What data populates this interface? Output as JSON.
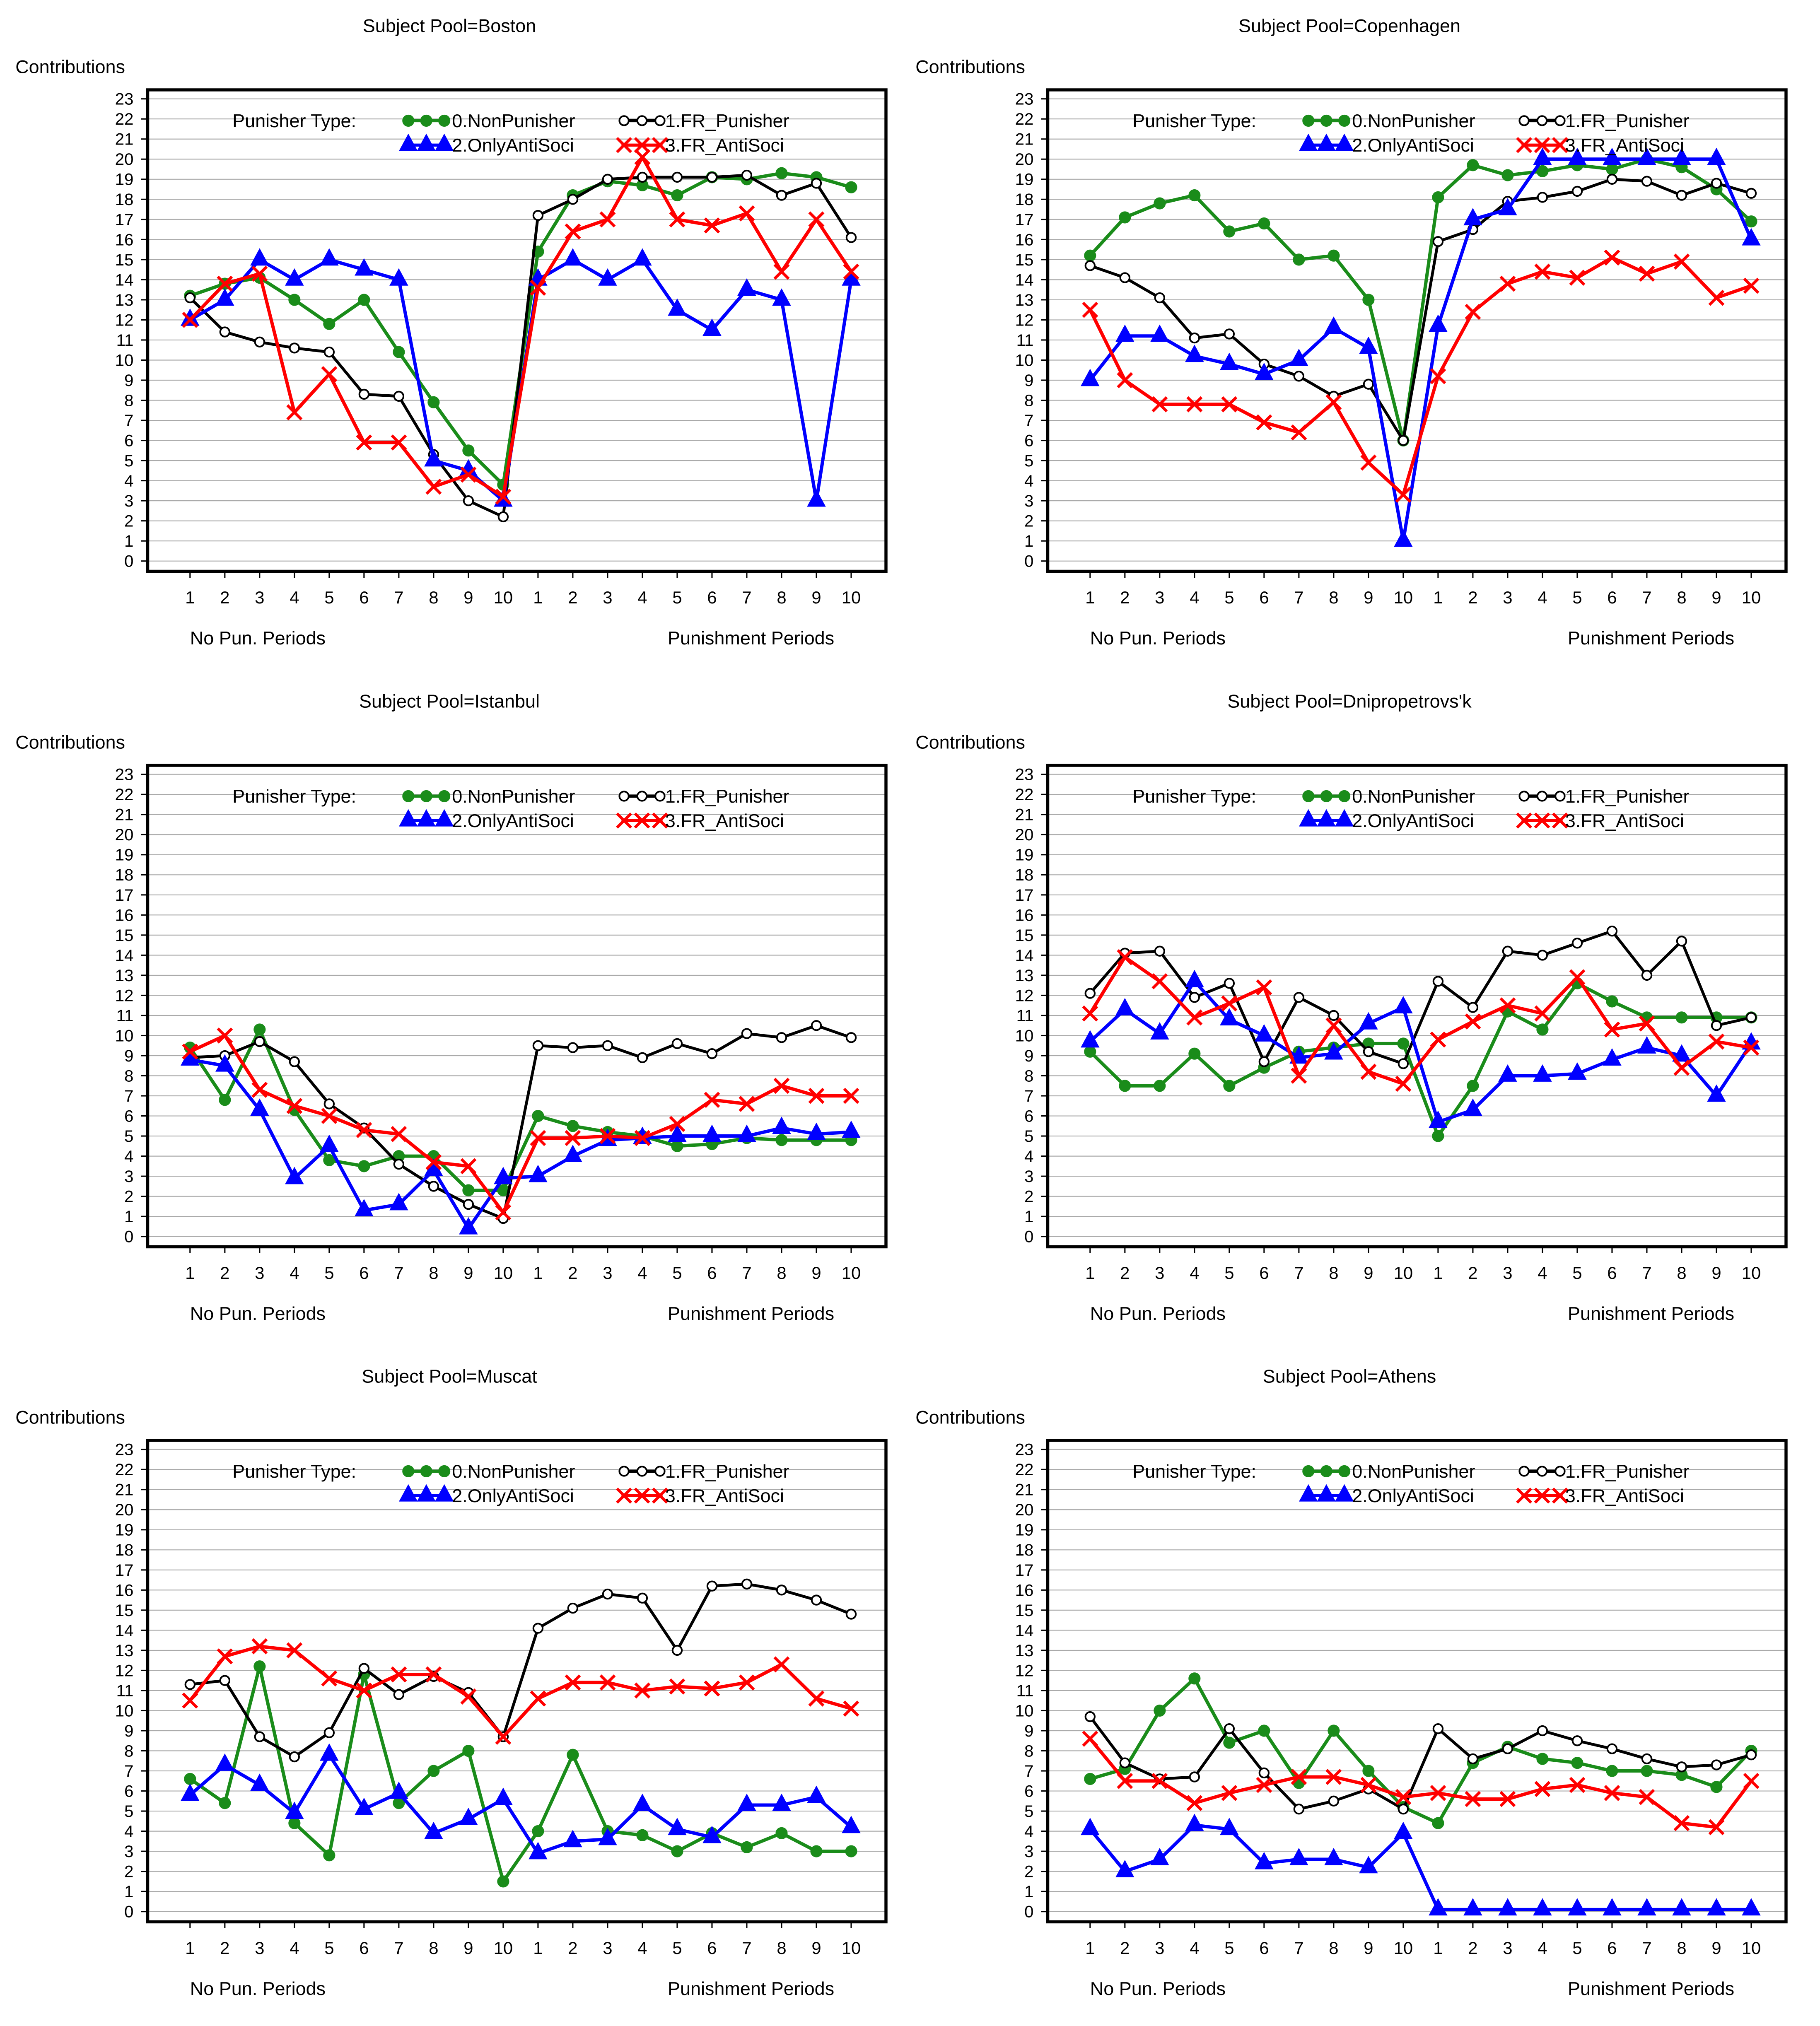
{
  "chart_data": [
    {
      "type": "line",
      "title": "Subject Pool=Boston",
      "ylabel": "Contributions",
      "ylim": [
        0,
        23
      ],
      "categories": [
        "1",
        "2",
        "3",
        "4",
        "5",
        "6",
        "7",
        "8",
        "9",
        "10",
        "1",
        "2",
        "3",
        "4",
        "5",
        "6",
        "7",
        "8",
        "9",
        "10"
      ],
      "xgroup_labels": [
        "No Pun. Periods",
        "Punishment Periods"
      ],
      "legend_title": "Punisher Type:",
      "series": [
        {
          "name": "0.NonPunisher",
          "values": [
            13.2,
            13.8,
            14.1,
            13.0,
            11.8,
            13.0,
            10.4,
            7.9,
            5.5,
            3.8,
            15.4,
            18.2,
            18.9,
            18.7,
            18.2,
            19.1,
            19.0,
            19.3,
            19.1,
            18.6
          ]
        },
        {
          "name": "1.FR_Punisher",
          "values": [
            13.1,
            11.4,
            10.9,
            10.6,
            10.4,
            8.3,
            8.2,
            5.3,
            3.0,
            2.2,
            17.2,
            18.0,
            19.0,
            19.1,
            19.1,
            19.1,
            19.2,
            18.2,
            18.8,
            16.1
          ]
        },
        {
          "name": "2.OnlyAntiSoci",
          "values": [
            12.0,
            13.0,
            15.0,
            14.0,
            15.0,
            14.5,
            14.0,
            5.0,
            4.5,
            3.0,
            14.0,
            15.0,
            14.0,
            15.0,
            12.5,
            11.5,
            13.5,
            13.0,
            3.0,
            14.0
          ]
        },
        {
          "name": "3.FR_AntiSoci",
          "values": [
            12.0,
            13.8,
            14.3,
            7.4,
            9.3,
            5.9,
            5.9,
            3.7,
            4.3,
            3.2,
            13.6,
            16.4,
            17.0,
            20.1,
            17.0,
            16.7,
            17.3,
            14.4,
            17.0,
            14.4
          ]
        }
      ]
    },
    {
      "type": "line",
      "title": "Subject Pool=Copenhagen",
      "ylabel": "Contributions",
      "ylim": [
        0,
        23
      ],
      "categories": [
        "1",
        "2",
        "3",
        "4",
        "5",
        "6",
        "7",
        "8",
        "9",
        "10",
        "1",
        "2",
        "3",
        "4",
        "5",
        "6",
        "7",
        "8",
        "9",
        "10"
      ],
      "xgroup_labels": [
        "No Pun. Periods",
        "Punishment Periods"
      ],
      "legend_title": "Punisher Type:",
      "series": [
        {
          "name": "0.NonPunisher",
          "values": [
            15.2,
            17.1,
            17.8,
            18.2,
            16.4,
            16.8,
            15.0,
            15.2,
            13.0,
            6.0,
            18.1,
            19.7,
            19.2,
            19.4,
            19.7,
            19.5,
            20.0,
            19.6,
            18.5,
            16.9
          ]
        },
        {
          "name": "1.FR_Punisher",
          "values": [
            14.7,
            14.1,
            13.1,
            11.1,
            11.3,
            9.8,
            9.2,
            8.2,
            8.8,
            6.0,
            15.9,
            16.5,
            17.9,
            18.1,
            18.4,
            19.0,
            18.9,
            18.2,
            18.8,
            18.3
          ]
        },
        {
          "name": "2.OnlyAntiSoci",
          "values": [
            9.0,
            11.2,
            11.2,
            10.2,
            9.8,
            9.3,
            10.0,
            11.6,
            10.6,
            1.0,
            11.7,
            17.0,
            17.5,
            20.0,
            20.0,
            20.0,
            20.0,
            20.0,
            20.0,
            16.0
          ]
        },
        {
          "name": "3.FR_AntiSoci",
          "values": [
            12.5,
            9.0,
            7.8,
            7.8,
            7.8,
            6.9,
            6.4,
            7.9,
            4.9,
            3.3,
            9.2,
            12.4,
            13.8,
            14.4,
            14.1,
            15.1,
            14.3,
            14.9,
            13.1,
            13.7
          ]
        }
      ]
    },
    {
      "type": "line",
      "title": "Subject Pool=Istanbul",
      "ylabel": "Contributions",
      "ylim": [
        0,
        23
      ],
      "categories": [
        "1",
        "2",
        "3",
        "4",
        "5",
        "6",
        "7",
        "8",
        "9",
        "10",
        "1",
        "2",
        "3",
        "4",
        "5",
        "6",
        "7",
        "8",
        "9",
        "10"
      ],
      "xgroup_labels": [
        "No Pun. Periods",
        "Punishment Periods"
      ],
      "legend_title": "Punisher Type:",
      "series": [
        {
          "name": "0.NonPunisher",
          "values": [
            9.4,
            6.8,
            10.3,
            6.3,
            3.8,
            3.5,
            4.0,
            4.0,
            2.3,
            2.3,
            6.0,
            5.5,
            5.2,
            5.0,
            4.5,
            4.6,
            4.9,
            4.8,
            4.8,
            4.8
          ]
        },
        {
          "name": "1.FR_Punisher",
          "values": [
            8.9,
            9.0,
            9.7,
            8.7,
            6.6,
            5.4,
            3.6,
            2.5,
            1.6,
            0.9,
            9.5,
            9.4,
            9.5,
            8.9,
            9.6,
            9.1,
            10.1,
            9.9,
            10.5,
            9.9
          ]
        },
        {
          "name": "2.OnlyAntiSoci",
          "values": [
            8.8,
            8.5,
            6.3,
            2.9,
            4.5,
            1.3,
            1.6,
            3.3,
            0.4,
            2.9,
            3.0,
            4.0,
            4.8,
            4.9,
            5.0,
            5.0,
            5.0,
            5.4,
            5.1,
            5.2
          ]
        },
        {
          "name": "3.FR_AntiSoci",
          "values": [
            9.2,
            10.0,
            7.3,
            6.5,
            6.0,
            5.3,
            5.1,
            3.7,
            3.5,
            1.2,
            4.9,
            4.9,
            5.0,
            4.9,
            5.6,
            6.8,
            6.6,
            7.5,
            7.0,
            7.0
          ]
        }
      ]
    },
    {
      "type": "line",
      "title": "Subject Pool=Dnipropetrovs'k",
      "ylabel": "Contributions",
      "ylim": [
        0,
        23
      ],
      "categories": [
        "1",
        "2",
        "3",
        "4",
        "5",
        "6",
        "7",
        "8",
        "9",
        "10",
        "1",
        "2",
        "3",
        "4",
        "5",
        "6",
        "7",
        "8",
        "9",
        "10"
      ],
      "xgroup_labels": [
        "No Pun. Periods",
        "Punishment Periods"
      ],
      "legend_title": "Punisher Type:",
      "series": [
        {
          "name": "0.NonPunisher",
          "values": [
            9.2,
            7.5,
            7.5,
            9.1,
            7.5,
            8.4,
            9.2,
            9.4,
            9.6,
            9.6,
            5.0,
            7.5,
            11.2,
            10.3,
            12.6,
            11.7,
            10.9,
            10.9,
            10.9,
            10.9
          ]
        },
        {
          "name": "1.FR_Punisher",
          "values": [
            12.1,
            14.1,
            14.2,
            11.9,
            12.6,
            8.7,
            11.9,
            11.0,
            9.2,
            8.6,
            12.7,
            11.4,
            14.2,
            14.0,
            14.6,
            15.2,
            13.0,
            14.7,
            10.5,
            10.9
          ]
        },
        {
          "name": "2.OnlyAntiSoci",
          "values": [
            9.7,
            11.3,
            10.1,
            12.7,
            10.8,
            10.0,
            8.9,
            9.1,
            10.6,
            11.4,
            5.7,
            6.3,
            8.0,
            8.0,
            8.1,
            8.8,
            9.4,
            9.0,
            7.0,
            9.6
          ]
        },
        {
          "name": "3.FR_AntiSoci",
          "values": [
            11.1,
            13.9,
            12.7,
            10.9,
            11.6,
            12.4,
            8.0,
            10.5,
            8.2,
            7.6,
            9.8,
            10.7,
            11.5,
            11.1,
            12.9,
            10.3,
            10.6,
            8.4,
            9.7,
            9.4
          ]
        }
      ]
    },
    {
      "type": "line",
      "title": "Subject Pool=Muscat",
      "ylabel": "Contributions",
      "ylim": [
        0,
        23
      ],
      "categories": [
        "1",
        "2",
        "3",
        "4",
        "5",
        "6",
        "7",
        "8",
        "9",
        "10",
        "1",
        "2",
        "3",
        "4",
        "5",
        "6",
        "7",
        "8",
        "9",
        "10"
      ],
      "xgroup_labels": [
        "No Pun. Periods",
        "Punishment Periods"
      ],
      "legend_title": "Punisher Type:",
      "series": [
        {
          "name": "0.NonPunisher",
          "values": [
            6.6,
            5.4,
            12.2,
            4.4,
            2.8,
            11.8,
            5.4,
            7.0,
            8.0,
            1.5,
            4.0,
            7.8,
            4.0,
            3.8,
            3.0,
            3.9,
            3.2,
            3.9,
            3.0,
            3.0
          ]
        },
        {
          "name": "1.FR_Punisher",
          "values": [
            11.3,
            11.5,
            8.7,
            7.7,
            8.9,
            12.1,
            10.8,
            11.7,
            10.9,
            8.7,
            14.1,
            15.1,
            15.8,
            15.6,
            13.0,
            16.2,
            16.3,
            16.0,
            15.5,
            14.8
          ]
        },
        {
          "name": "2.OnlyAntiSoci",
          "values": [
            5.8,
            7.3,
            6.3,
            4.9,
            7.8,
            5.1,
            5.9,
            3.9,
            4.6,
            5.6,
            2.9,
            3.5,
            3.6,
            5.3,
            4.1,
            3.7,
            5.3,
            5.3,
            5.7,
            4.2
          ]
        },
        {
          "name": "3.FR_AntiSoci",
          "values": [
            10.5,
            12.7,
            13.2,
            13.0,
            11.6,
            11.0,
            11.8,
            11.8,
            10.7,
            8.7,
            10.6,
            11.4,
            11.4,
            11.0,
            11.2,
            11.1,
            11.4,
            12.3,
            10.6,
            10.1
          ]
        }
      ]
    },
    {
      "type": "line",
      "title": "Subject Pool=Athens",
      "ylabel": "Contributions",
      "ylim": [
        0,
        23
      ],
      "categories": [
        "1",
        "2",
        "3",
        "4",
        "5",
        "6",
        "7",
        "8",
        "9",
        "10",
        "1",
        "2",
        "3",
        "4",
        "5",
        "6",
        "7",
        "8",
        "9",
        "10"
      ],
      "xgroup_labels": [
        "No Pun. Periods",
        "Punishment Periods"
      ],
      "legend_title": "Punisher Type:",
      "series": [
        {
          "name": "0.NonPunisher",
          "values": [
            6.6,
            7.1,
            10.0,
            11.6,
            8.4,
            9.0,
            6.4,
            9.0,
            7.0,
            5.2,
            4.4,
            7.4,
            8.2,
            7.6,
            7.4,
            7.0,
            7.0,
            6.8,
            6.2,
            8.0
          ]
        },
        {
          "name": "1.FR_Punisher",
          "values": [
            9.7,
            7.4,
            6.6,
            6.7,
            9.1,
            6.9,
            5.1,
            5.5,
            6.1,
            5.1,
            9.1,
            7.6,
            8.1,
            9.0,
            8.5,
            8.1,
            7.6,
            7.2,
            7.3,
            7.8
          ]
        },
        {
          "name": "2.OnlyAntiSoci",
          "values": [
            4.1,
            2.0,
            2.6,
            4.3,
            4.1,
            2.4,
            2.6,
            2.6,
            2.2,
            3.9,
            0.1,
            0.1,
            0.1,
            0.1,
            0.1,
            0.1,
            0.1,
            0.1,
            0.1,
            0.1
          ]
        },
        {
          "name": "3.FR_AntiSoci",
          "values": [
            8.6,
            6.5,
            6.5,
            5.4,
            5.9,
            6.3,
            6.7,
            6.7,
            6.3,
            5.7,
            5.9,
            5.6,
            5.6,
            6.1,
            6.3,
            5.9,
            5.7,
            4.4,
            4.2,
            6.5
          ]
        }
      ]
    }
  ],
  "style": {
    "series_colors": [
      "#1a8c1a",
      "#000000",
      "#0000ff",
      "#ff0000"
    ],
    "series_markers": [
      "dot",
      "circle",
      "triangle",
      "x"
    ],
    "grid_color": "#aaaaaa"
  }
}
